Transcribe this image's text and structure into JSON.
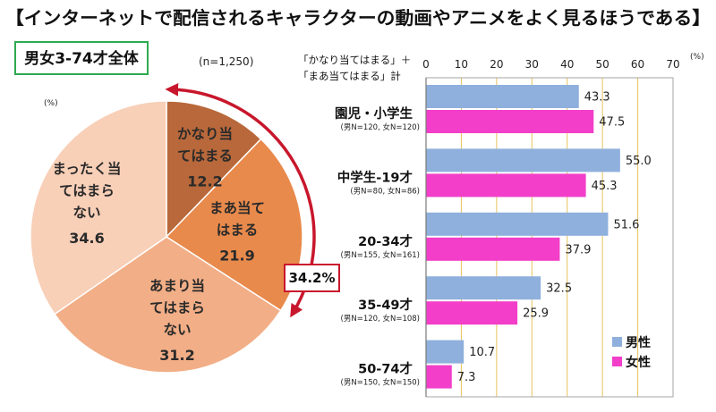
{
  "title": "【インターネットで配信されるキャラクターの動画やアニメをよく見るほうである】",
  "colors": {
    "accent_red": "#c8172c",
    "frame_green": "#2eaa4f",
    "grid": "#e6c35c",
    "axis": "#a6a6a6"
  },
  "chart_data": [
    {
      "type": "pie",
      "title": "男女3-74才全体",
      "n_label": "(n=1,250)",
      "unit_label": "(%)",
      "slices": [
        {
          "label_lines": [
            "かなり当",
            "てはまる"
          ],
          "value": 12.2,
          "color": "#b8683a"
        },
        {
          "label_lines": [
            "まあ当て",
            "はまる"
          ],
          "value": 21.9,
          "color": "#e88a4c"
        },
        {
          "label_lines": [
            "あまり当",
            "てはまら",
            "ない"
          ],
          "value": 31.2,
          "color": "#f2ae86"
        },
        {
          "label_lines": [
            "まったく当",
            "てはまら",
            "ない"
          ],
          "value": 34.6,
          "color": "#f8cfb7"
        }
      ],
      "highlight": {
        "label": "34.2%",
        "value": 34.2
      }
    },
    {
      "type": "bar",
      "orientation": "horizontal",
      "header_lines": [
        "「かなり当てはまる」＋",
        "「まあ当てはまる」計"
      ],
      "unit_label": "(%)",
      "xlim": [
        0,
        70
      ],
      "ticks": [
        0,
        10,
        20,
        30,
        40,
        50,
        60,
        70
      ],
      "categories": [
        {
          "label": "園児・小学生",
          "note": "(男N=120, 女N=120)"
        },
        {
          "label": "中学生-19才",
          "note": "(男N=80, 女N=86)"
        },
        {
          "label": "20-34才",
          "note": "(男N=155, 女N=161)"
        },
        {
          "label": "35-49才",
          "note": "(男N=120, 女N=108)"
        },
        {
          "label": "50-74才",
          "note": "(男N=150, 女N=150)"
        }
      ],
      "series": [
        {
          "name": "男性",
          "values": [
            43.3,
            55.0,
            51.6,
            32.5,
            10.7
          ],
          "color": "#8fb0dd"
        },
        {
          "name": "女性",
          "values": [
            47.5,
            45.3,
            37.9,
            25.9,
            7.3
          ],
          "color": "#f23ec9"
        }
      ],
      "legend_position": "bottom-right"
    }
  ]
}
